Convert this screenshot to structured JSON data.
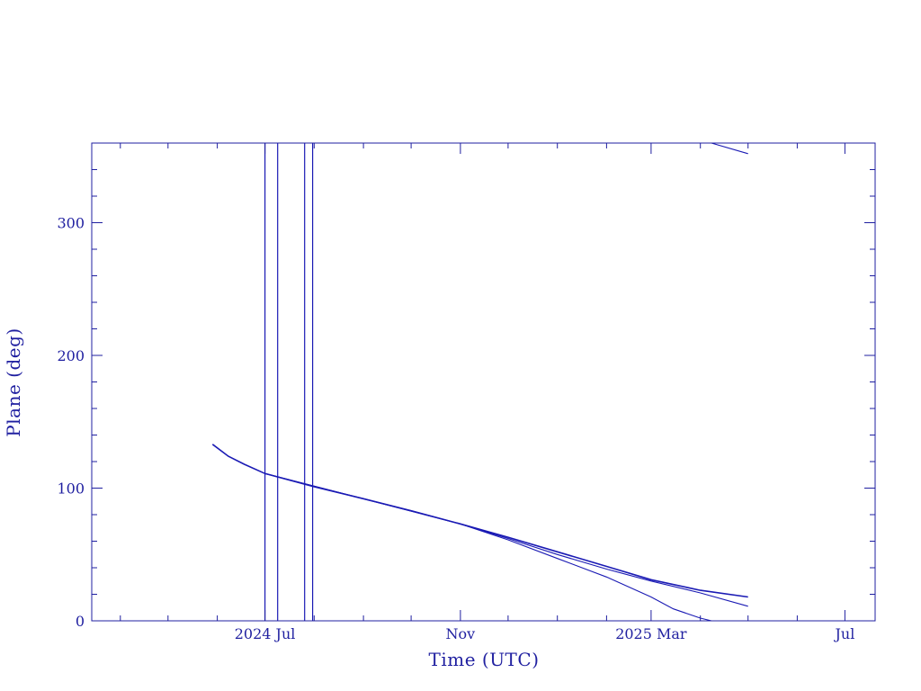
{
  "chart_data": {
    "type": "line",
    "xlabel": "Time (UTC)",
    "ylabel": "Plane (deg)",
    "xlim": [
      "2024-03-14",
      "2025-07-20"
    ],
    "ylim": [
      0,
      360
    ],
    "grid": false,
    "x_ticks": [
      {
        "date": "2024-07-01",
        "label": "2024 Jul"
      },
      {
        "date": "2024-11-01",
        "label": "Nov"
      },
      {
        "date": "2025-03-01",
        "label": "2025 Mar"
      },
      {
        "date": "2025-07-01",
        "label": "Jul"
      }
    ],
    "y_ticks": [
      0,
      100,
      200,
      300
    ],
    "colors": {
      "axis": "#1f1fa0",
      "series": "#1a1ab4"
    },
    "series": [
      {
        "x": [
          "2024-05-29",
          "2024-06-08",
          "2024-06-18",
          "2024-07-01",
          "2024-08-01",
          "2024-09-01",
          "2024-10-01",
          "2024-11-01",
          "2024-12-01",
          "2025-01-01",
          "2025-02-01",
          "2025-03-01",
          "2025-04-01",
          "2025-05-01"
        ],
        "y": [
          133,
          124,
          118,
          111,
          101,
          92,
          83,
          73,
          63,
          52,
          41,
          31,
          23,
          18
        ]
      },
      {
        "x": [
          "2024-07-01",
          "2024-09-01",
          "2024-11-01",
          "2024-12-01",
          "2025-01-01",
          "2025-02-01",
          "2025-03-01",
          "2025-04-01",
          "2025-05-01"
        ],
        "y": [
          111,
          92,
          73,
          62,
          50,
          39,
          30,
          21,
          11
        ]
      },
      {
        "x": [
          "2024-07-01",
          "2024-09-01",
          "2024-11-01",
          "2024-12-01",
          "2025-01-01",
          "2025-02-01",
          "2025-03-01",
          "2025-03-15",
          "2025-04-01",
          "2025-04-08"
        ],
        "y": [
          111,
          92,
          73,
          61,
          47,
          33,
          18,
          9,
          2,
          0
        ]
      },
      {
        "x": [
          "2025-04-08",
          "2025-05-01"
        ],
        "y": [
          360,
          352
        ]
      }
    ],
    "vlines": [
      "2024-07-01",
      "2024-07-09",
      "2024-07-26",
      "2024-07-31"
    ]
  }
}
